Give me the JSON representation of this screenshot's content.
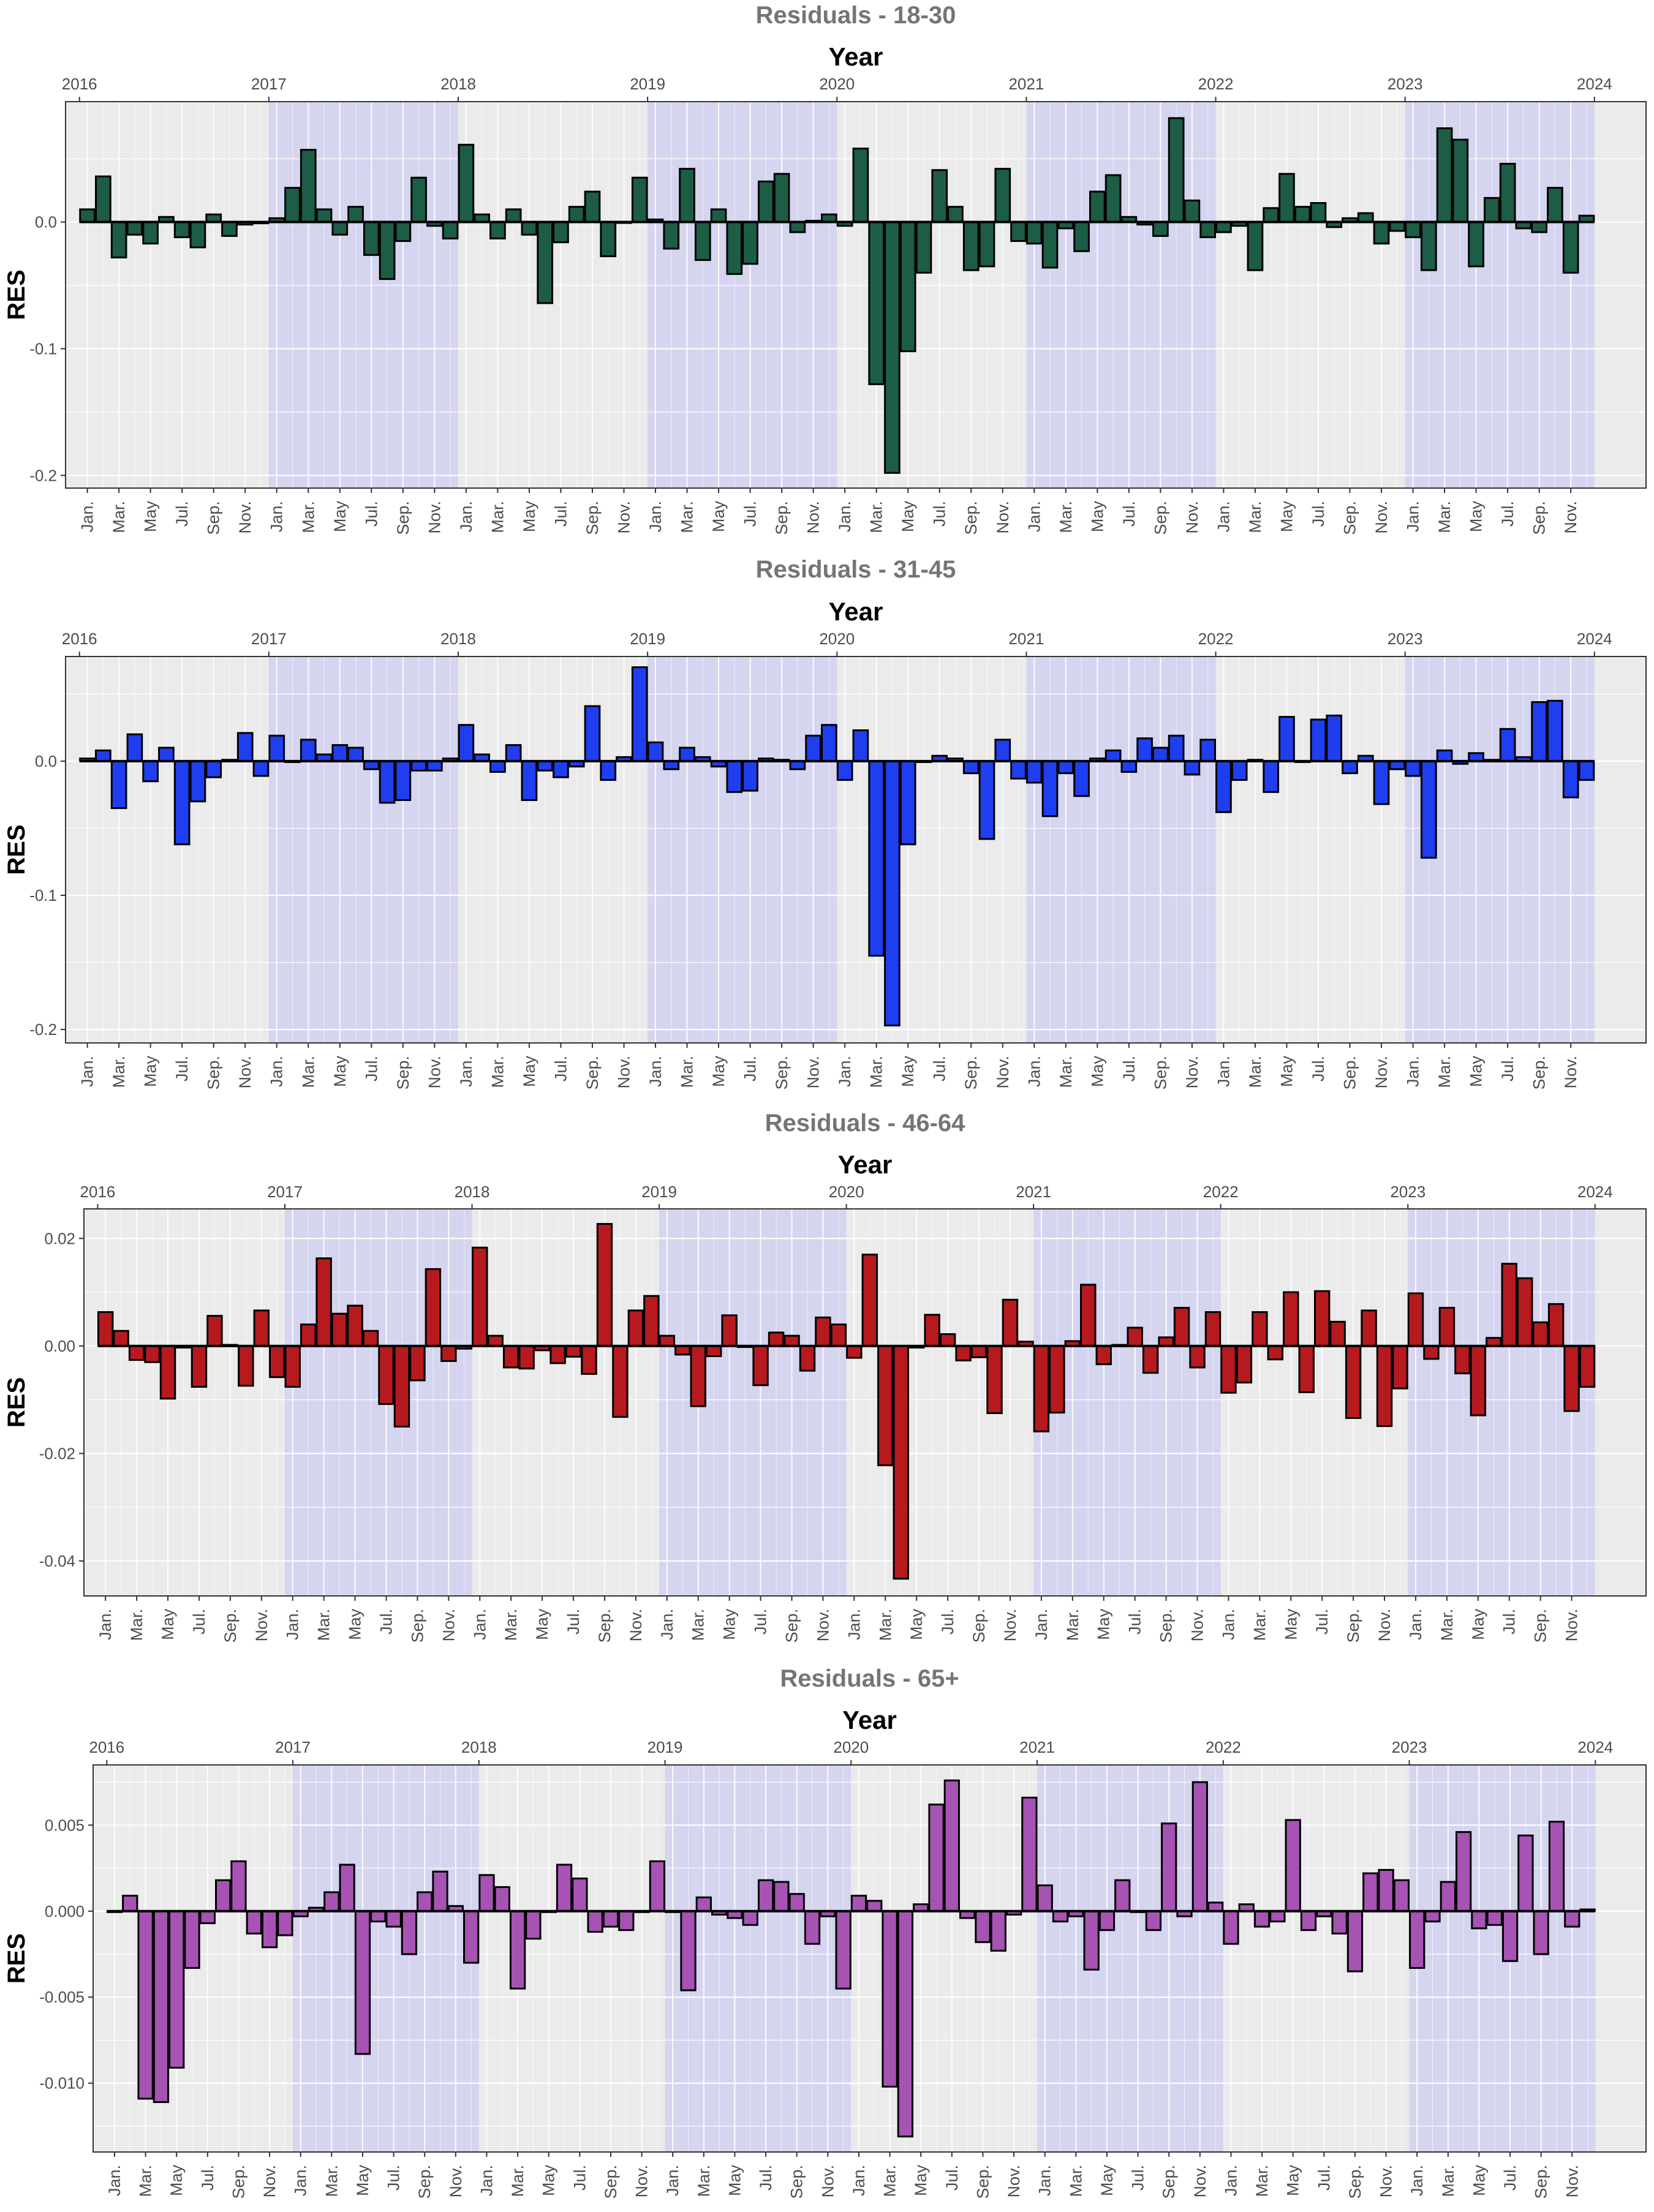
{
  "chart_data": [
    {
      "type": "bar",
      "title": "Residuals - 18-30",
      "xlabel": "Year",
      "ylabel": "RES",
      "fill": "#1d5c45",
      "ylim": [
        -0.21,
        0.095
      ],
      "yticks": [
        -0.2,
        -0.1,
        0.0
      ],
      "ytick_labels": [
        "-0.2",
        "-0.1",
        "0.0"
      ],
      "values": [
        0.01,
        0.036,
        -0.028,
        -0.01,
        -0.017,
        0.004,
        -0.012,
        -0.02,
        0.006,
        -0.011,
        -0.002,
        -0.001,
        0.003,
        0.027,
        0.057,
        0.01,
        -0.01,
        0.012,
        -0.026,
        -0.045,
        -0.015,
        0.035,
        -0.003,
        -0.013,
        0.061,
        0.006,
        -0.013,
        0.01,
        -0.01,
        -0.064,
        -0.016,
        0.012,
        0.024,
        -0.027,
        0.0,
        0.035,
        0.002,
        -0.021,
        0.042,
        -0.03,
        0.01,
        -0.041,
        -0.033,
        0.032,
        0.038,
        -0.008,
        0.001,
        0.006,
        -0.003,
        0.058,
        -0.128,
        -0.198,
        -0.102,
        -0.04,
        0.041,
        0.012,
        -0.038,
        -0.035,
        0.042,
        -0.015,
        -0.017,
        -0.036,
        -0.005,
        -0.023,
        0.024,
        0.037,
        0.004,
        -0.002,
        -0.011,
        0.082,
        0.017,
        -0.012,
        -0.008,
        -0.003,
        -0.038,
        0.011,
        0.038,
        0.012,
        0.015,
        -0.004,
        0.003,
        0.007,
        -0.017,
        -0.007,
        -0.012,
        -0.038,
        0.074,
        0.065,
        -0.035,
        0.019,
        0.046,
        -0.005,
        -0.008,
        0.027,
        -0.04,
        0.005
      ]
    },
    {
      "type": "bar",
      "title": "Residuals - 31-45",
      "xlabel": "Year",
      "ylabel": "RES",
      "fill": "#1f3ef0",
      "ylim": [
        -0.21,
        0.078
      ],
      "yticks": [
        -0.2,
        -0.1,
        0.0
      ],
      "ytick_labels": [
        "-0.2",
        "-0.1",
        "0.0"
      ],
      "values": [
        0.002,
        0.008,
        -0.035,
        0.02,
        -0.015,
        0.01,
        -0.062,
        -0.03,
        -0.012,
        0.001,
        0.021,
        -0.011,
        0.019,
        0.0,
        0.016,
        0.005,
        0.012,
        0.01,
        -0.006,
        -0.031,
        -0.029,
        -0.007,
        -0.007,
        0.002,
        0.027,
        0.005,
        -0.008,
        0.012,
        -0.029,
        -0.007,
        -0.012,
        -0.004,
        0.041,
        -0.014,
        0.003,
        0.07,
        0.014,
        -0.006,
        0.01,
        0.003,
        -0.004,
        -0.023,
        -0.022,
        0.002,
        0.001,
        -0.006,
        0.019,
        0.027,
        -0.014,
        0.023,
        -0.145,
        -0.197,
        -0.062,
        0.0,
        0.004,
        0.002,
        -0.009,
        -0.058,
        0.016,
        -0.013,
        -0.016,
        -0.041,
        -0.009,
        -0.026,
        0.002,
        0.008,
        -0.008,
        0.017,
        0.01,
        0.019,
        -0.01,
        0.016,
        -0.038,
        -0.014,
        0.001,
        -0.023,
        0.033,
        0.0,
        0.031,
        0.034,
        -0.009,
        0.004,
        -0.032,
        -0.006,
        -0.011,
        -0.072,
        0.008,
        -0.002,
        0.006,
        0.001,
        0.024,
        0.003,
        0.044,
        0.045,
        -0.027,
        -0.014
      ]
    },
    {
      "type": "bar",
      "title": "Residuals - 46-64",
      "xlabel": "Year",
      "ylabel": "RES",
      "fill": "#b61a1f",
      "ylim": [
        -0.0465,
        0.0255
      ],
      "yticks": [
        -0.04,
        -0.02,
        0.0,
        0.02
      ],
      "ytick_labels": [
        "-0.04",
        "-0.02",
        "0.00",
        "0.02"
      ],
      "values": [
        0.0063,
        0.0028,
        -0.0026,
        -0.003,
        -0.0098,
        -0.0003,
        -0.0076,
        0.0056,
        0.0002,
        -0.0074,
        0.0066,
        -0.0058,
        -0.0076,
        0.004,
        0.0163,
        0.006,
        0.0075,
        0.0028,
        -0.0108,
        -0.015,
        -0.0064,
        0.0143,
        -0.0028,
        -0.0005,
        0.0183,
        0.0019,
        -0.004,
        -0.0042,
        -0.0008,
        -0.0032,
        -0.002,
        -0.0052,
        0.0227,
        -0.0132,
        0.0066,
        0.0093,
        0.0019,
        -0.0016,
        -0.0112,
        -0.0019,
        0.0057,
        -0.0002,
        -0.0073,
        0.0025,
        0.0019,
        -0.0046,
        0.0053,
        0.004,
        -0.0022,
        0.017,
        -0.0222,
        -0.0433,
        -0.0003,
        0.0058,
        0.0022,
        -0.0027,
        -0.0021,
        -0.0125,
        0.0086,
        0.0008,
        -0.0159,
        -0.0124,
        0.0009,
        0.0114,
        -0.0034,
        0.0002,
        0.0034,
        -0.005,
        0.0016,
        0.0071,
        -0.004,
        0.0063,
        -0.0087,
        -0.0068,
        0.0063,
        -0.0025,
        0.01,
        -0.0086,
        0.0102,
        0.0045,
        -0.0134,
        0.0066,
        -0.0149,
        -0.0079,
        0.0098,
        -0.0024,
        0.0071,
        -0.0051,
        -0.0129,
        0.0015,
        0.0153,
        0.0126,
        0.0044,
        0.0078,
        -0.0121,
        -0.0076
      ]
    },
    {
      "type": "bar",
      "title": "Residuals - 65+",
      "xlabel": "Year",
      "ylabel": "RES",
      "fill": "#a653b3",
      "ylim": [
        -0.014,
        0.0085
      ],
      "yticks": [
        -0.01,
        -0.005,
        0.0,
        0.005
      ],
      "ytick_labels": [
        "-0.010",
        "-0.005",
        "0.000",
        "0.005"
      ],
      "values": [
        0.0,
        0.0009,
        -0.0109,
        -0.0111,
        -0.0091,
        -0.0033,
        -0.0007,
        0.0018,
        0.0029,
        -0.0013,
        -0.0021,
        -0.0014,
        -0.0003,
        0.0002,
        0.0011,
        0.0027,
        -0.0083,
        -0.0006,
        -0.0009,
        -0.0025,
        0.0011,
        0.0023,
        0.0003,
        -0.003,
        0.0021,
        0.0014,
        -0.0045,
        -0.0016,
        0.0,
        0.0027,
        0.0019,
        -0.0012,
        -0.0009,
        -0.0011,
        0.0,
        0.0029,
        0.0,
        -0.0046,
        0.0008,
        -0.0002,
        -0.0004,
        -0.0008,
        0.0018,
        0.0017,
        0.001,
        -0.0019,
        -0.0003,
        -0.0045,
        0.0009,
        0.0006,
        -0.0102,
        -0.0131,
        0.0004,
        0.0062,
        0.0076,
        -0.0004,
        -0.0018,
        -0.0023,
        -0.0002,
        0.0066,
        0.0015,
        -0.0006,
        -0.0003,
        -0.0034,
        -0.0011,
        0.0018,
        0.0,
        -0.0011,
        0.0051,
        -0.0003,
        0.0075,
        0.0005,
        -0.0019,
        0.0004,
        -0.0009,
        -0.0006,
        0.0053,
        -0.0011,
        -0.0003,
        -0.0013,
        -0.0035,
        0.0022,
        0.0024,
        0.0018,
        -0.0033,
        -0.0006,
        0.0017,
        0.0046,
        -0.001,
        -0.0008,
        -0.0029,
        0.0044,
        -0.0025,
        0.0052,
        -0.0009,
        0.0001
      ]
    }
  ],
  "year_labels": [
    "2016",
    "2017",
    "2018",
    "2019",
    "2020",
    "2021",
    "2022",
    "2023",
    "2024"
  ],
  "month_labels": [
    "Jan.",
    "Mar.",
    "May",
    "Jul.",
    "Sep.",
    "Nov."
  ],
  "highlight_years": [
    2017,
    2019,
    2021,
    2023
  ],
  "colors": {
    "panel_bg": "#ebebeb",
    "highlight": "#d5d5f0",
    "grid": "#ffffff",
    "bar_outline": "#000000"
  }
}
